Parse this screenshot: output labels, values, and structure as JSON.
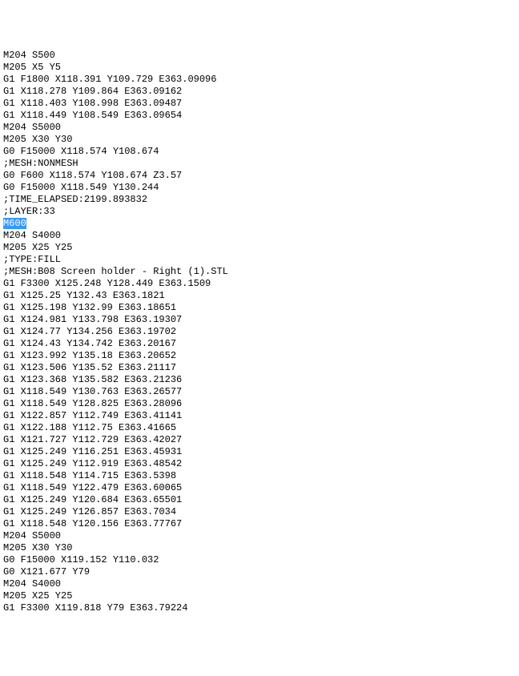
{
  "code": {
    "lines": [
      {
        "text": "M204 S500",
        "highlighted": false
      },
      {
        "text": "M205 X5 Y5",
        "highlighted": false
      },
      {
        "text": "G1 F1800 X118.391 Y109.729 E363.09096",
        "highlighted": false
      },
      {
        "text": "G1 X118.278 Y109.864 E363.09162",
        "highlighted": false
      },
      {
        "text": "G1 X118.403 Y108.998 E363.09487",
        "highlighted": false
      },
      {
        "text": "G1 X118.449 Y108.549 E363.09654",
        "highlighted": false
      },
      {
        "text": "M204 S5000",
        "highlighted": false
      },
      {
        "text": "M205 X30 Y30",
        "highlighted": false
      },
      {
        "text": "G0 F15000 X118.574 Y108.674",
        "highlighted": false
      },
      {
        "text": ";MESH:NONMESH",
        "highlighted": false
      },
      {
        "text": "G0 F600 X118.574 Y108.674 Z3.57",
        "highlighted": false
      },
      {
        "text": "G0 F15000 X118.549 Y130.244",
        "highlighted": false
      },
      {
        "text": ";TIME_ELAPSED:2199.893832",
        "highlighted": false
      },
      {
        "text": ";LAYER:33",
        "highlighted": false
      },
      {
        "text": "M600",
        "highlighted": true
      },
      {
        "text": "M204 S4000",
        "highlighted": false
      },
      {
        "text": "M205 X25 Y25",
        "highlighted": false
      },
      {
        "text": ";TYPE:FILL",
        "highlighted": false
      },
      {
        "text": ";MESH:B08 Screen holder - Right (1).STL",
        "highlighted": false
      },
      {
        "text": "G1 F3300 X125.248 Y128.449 E363.1509",
        "highlighted": false
      },
      {
        "text": "G1 X125.25 Y132.43 E363.1821",
        "highlighted": false
      },
      {
        "text": "G1 X125.198 Y132.99 E363.18651",
        "highlighted": false
      },
      {
        "text": "G1 X124.981 Y133.798 E363.19307",
        "highlighted": false
      },
      {
        "text": "G1 X124.77 Y134.256 E363.19702",
        "highlighted": false
      },
      {
        "text": "G1 X124.43 Y134.742 E363.20167",
        "highlighted": false
      },
      {
        "text": "G1 X123.992 Y135.18 E363.20652",
        "highlighted": false
      },
      {
        "text": "G1 X123.506 Y135.52 E363.21117",
        "highlighted": false
      },
      {
        "text": "G1 X123.368 Y135.582 E363.21236",
        "highlighted": false
      },
      {
        "text": "G1 X118.549 Y130.763 E363.26577",
        "highlighted": false
      },
      {
        "text": "G1 X118.549 Y128.825 E363.28096",
        "highlighted": false
      },
      {
        "text": "G1 X122.857 Y112.749 E363.41141",
        "highlighted": false
      },
      {
        "text": "G1 X122.188 Y112.75 E363.41665",
        "highlighted": false
      },
      {
        "text": "G1 X121.727 Y112.729 E363.42027",
        "highlighted": false
      },
      {
        "text": "G1 X125.249 Y116.251 E363.45931",
        "highlighted": false
      },
      {
        "text": "G1 X125.249 Y112.919 E363.48542",
        "highlighted": false
      },
      {
        "text": "G1 X118.548 Y114.715 E363.5398",
        "highlighted": false
      },
      {
        "text": "G1 X118.549 Y122.479 E363.60065",
        "highlighted": false
      },
      {
        "text": "G1 X125.249 Y120.684 E363.65501",
        "highlighted": false
      },
      {
        "text": "G1 X125.249 Y126.857 E363.7034",
        "highlighted": false
      },
      {
        "text": "G1 X118.548 Y120.156 E363.77767",
        "highlighted": false
      },
      {
        "text": "M204 S5000",
        "highlighted": false
      },
      {
        "text": "M205 X30 Y30",
        "highlighted": false
      },
      {
        "text": "G0 F15000 X119.152 Y110.032",
        "highlighted": false
      },
      {
        "text": "G0 X121.677 Y79",
        "highlighted": false
      },
      {
        "text": "M204 S4000",
        "highlighted": false
      },
      {
        "text": "M205 X25 Y25",
        "highlighted": false
      },
      {
        "text": "G1 F3300 X119.818 Y79 E363.79224",
        "highlighted": false
      }
    ]
  },
  "styling": {
    "font_family": "monospace",
    "font_size": 12,
    "background_color": "#ffffff",
    "text_color": "#000000",
    "highlight_background": "#3399ff",
    "highlight_text": "#ffffff"
  }
}
